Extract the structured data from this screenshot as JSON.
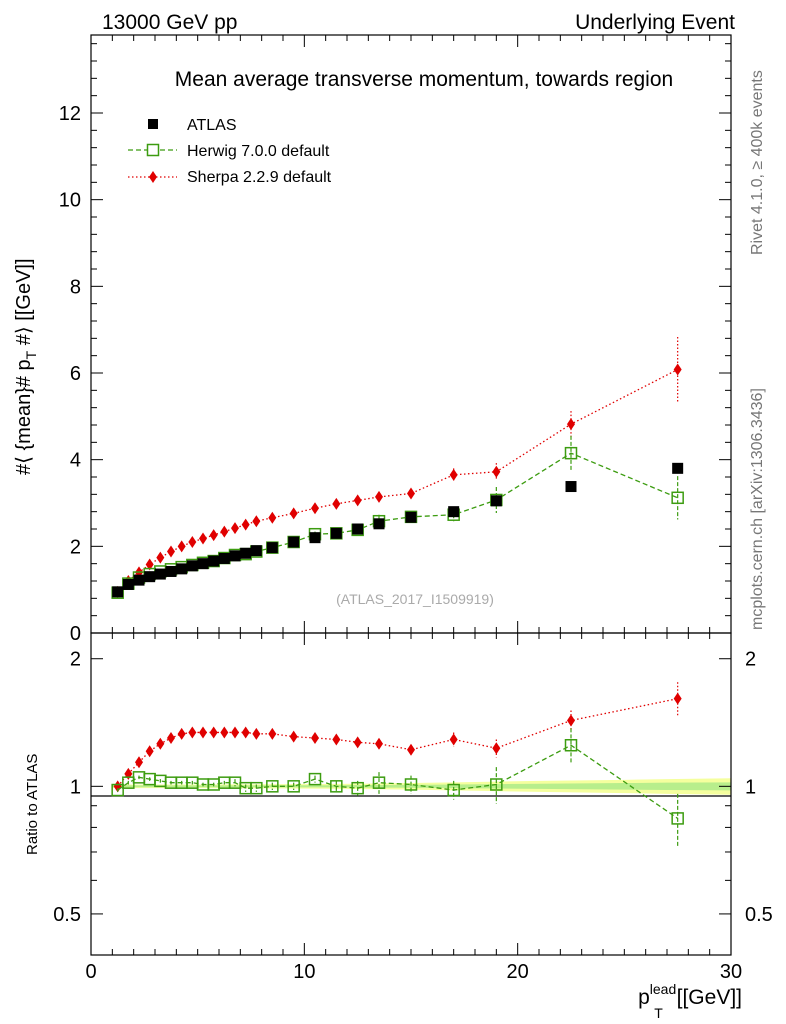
{
  "header": {
    "left": "13000 GeV pp",
    "right": "Underlying Event"
  },
  "side_labels": {
    "rivet": "Rivet 4.1.0, ≥ 400k events",
    "mcplots": "mcplots.cern.ch [arXiv:1306.3436]"
  },
  "chart_data": [
    {
      "type": "scatter",
      "title": "Mean average transverse momentum, towards region",
      "watermark": "(ATLAS_2017_I1509919)",
      "ylabel": "#⟨ {mean}# p_T #⟩ [[GeV]]",
      "ylabel_parts": {
        "pre": "#⟨ {mean}# p",
        "sub": "T",
        "post": " #⟩ [[GeV]]"
      },
      "xlim": [
        0,
        30
      ],
      "ylim": [
        0,
        13.8
      ],
      "y_ticks": [
        0,
        2,
        4,
        6,
        8,
        10,
        12
      ],
      "y_tick_labels": [
        "0",
        "2",
        "4",
        "6",
        "8",
        "10",
        "12"
      ],
      "legend_position": "top-left",
      "x": [
        1.25,
        1.75,
        2.25,
        2.75,
        3.25,
        3.75,
        4.25,
        4.75,
        5.25,
        5.75,
        6.25,
        6.75,
        7.25,
        7.75,
        8.5,
        9.5,
        10.5,
        11.5,
        12.5,
        13.5,
        15,
        17,
        19,
        22.5,
        27.5
      ],
      "series": [
        {
          "name": "ATLAS",
          "color": "#000000",
          "marker": "square-filled",
          "values": [
            0.95,
            1.12,
            1.22,
            1.3,
            1.36,
            1.42,
            1.48,
            1.55,
            1.6,
            1.66,
            1.72,
            1.78,
            1.84,
            1.9,
            1.97,
            2.1,
            2.2,
            2.3,
            2.4,
            2.52,
            2.67,
            2.8,
            3.05,
            3.38,
            3.8
          ],
          "errors": [
            0.02,
            0.02,
            0.02,
            0.02,
            0.02,
            0.02,
            0.02,
            0.02,
            0.02,
            0.02,
            0.02,
            0.02,
            0.02,
            0.02,
            0.02,
            0.03,
            0.03,
            0.03,
            0.03,
            0.04,
            0.05,
            0.06,
            0.08,
            0.1,
            0.12
          ]
        },
        {
          "name": "Herwig 7.0.0 default",
          "color": "#3c9c10",
          "marker": "square-open",
          "line": "dashed",
          "values": [
            0.93,
            1.14,
            1.28,
            1.36,
            1.42,
            1.47,
            1.52,
            1.57,
            1.62,
            1.66,
            1.73,
            1.8,
            1.82,
            1.88,
            1.97,
            2.1,
            2.28,
            2.3,
            2.38,
            2.58,
            2.68,
            2.73,
            3.07,
            4.15,
            3.12
          ],
          "errors": [
            0.02,
            0.02,
            0.02,
            0.02,
            0.02,
            0.03,
            0.03,
            0.03,
            0.03,
            0.03,
            0.04,
            0.04,
            0.04,
            0.04,
            0.05,
            0.05,
            0.06,
            0.07,
            0.1,
            0.15,
            0.13,
            0.15,
            0.3,
            0.4,
            0.5
          ]
        },
        {
          "name": "Sherpa 2.2.9 default",
          "color": "#e00000",
          "marker": "diamond",
          "line": "dotted",
          "values": [
            0.95,
            1.2,
            1.4,
            1.58,
            1.74,
            1.88,
            2.0,
            2.1,
            2.18,
            2.26,
            2.34,
            2.42,
            2.5,
            2.58,
            2.66,
            2.76,
            2.88,
            2.98,
            3.06,
            3.14,
            3.22,
            3.65,
            3.72,
            4.82,
            6.08
          ],
          "errors": [
            0.02,
            0.02,
            0.02,
            0.02,
            0.02,
            0.02,
            0.02,
            0.03,
            0.03,
            0.03,
            0.03,
            0.03,
            0.03,
            0.03,
            0.04,
            0.04,
            0.05,
            0.05,
            0.06,
            0.07,
            0.08,
            0.15,
            0.2,
            0.3,
            0.75
          ]
        }
      ]
    },
    {
      "type": "scatter",
      "title": "Ratio to ATLAS",
      "ylabel": "Ratio to ATLAS",
      "xlabel": "p_T^lead [[GeV]]",
      "xlabel_parts": {
        "pre": "p",
        "sup": "lead",
        "sub": "T",
        "post": " [[GeV]]"
      },
      "xlim": [
        0,
        30
      ],
      "ylim": [
        0.4,
        2.3
      ],
      "y_scale": "log",
      "y_ticks": [
        0.5,
        1,
        2
      ],
      "y_tick_labels": [
        "0.5",
        "1",
        "2"
      ],
      "x_ticks": [
        0,
        10,
        20,
        30
      ],
      "x_tick_labels": [
        "0",
        "10",
        "20",
        "30"
      ],
      "x": [
        1.25,
        1.75,
        2.25,
        2.75,
        3.25,
        3.75,
        4.25,
        4.75,
        5.25,
        5.75,
        6.25,
        6.75,
        7.25,
        7.75,
        8.5,
        9.5,
        10.5,
        11.5,
        12.5,
        13.5,
        15,
        17,
        19,
        22.5,
        27.5
      ],
      "band": {
        "x": [
          1.0,
          3.0,
          5.0,
          7.0,
          9.0,
          11.0,
          13.0,
          15.0,
          17.0,
          19.0,
          21.0,
          23.0,
          25.0,
          27.0,
          30.0
        ],
        "inner": [
          0.005,
          0.005,
          0.005,
          0.005,
          0.006,
          0.006,
          0.007,
          0.008,
          0.01,
          0.012,
          0.014,
          0.016,
          0.018,
          0.02,
          0.022
        ],
        "outer": [
          0.01,
          0.01,
          0.01,
          0.011,
          0.012,
          0.013,
          0.015,
          0.018,
          0.022,
          0.026,
          0.03,
          0.033,
          0.036,
          0.04,
          0.045
        ]
      },
      "series": [
        {
          "name": "Herwig 7.0.0 default",
          "color": "#3c9c10",
          "marker": "square-open",
          "line": "dashed",
          "values": [
            0.98,
            1.02,
            1.05,
            1.04,
            1.03,
            1.02,
            1.02,
            1.02,
            1.01,
            1.01,
            1.02,
            1.02,
            0.99,
            0.99,
            1.0,
            1.0,
            1.04,
            1.0,
            0.99,
            1.02,
            1.01,
            0.98,
            1.01,
            1.25,
            0.84
          ],
          "errors": [
            0.01,
            0.01,
            0.01,
            0.01,
            0.01,
            0.01,
            0.01,
            0.01,
            0.01,
            0.01,
            0.01,
            0.02,
            0.02,
            0.02,
            0.02,
            0.02,
            0.02,
            0.03,
            0.04,
            0.06,
            0.05,
            0.05,
            0.1,
            0.12,
            0.12
          ]
        },
        {
          "name": "Sherpa 2.2.9 default",
          "color": "#e00000",
          "marker": "diamond",
          "line": "dotted",
          "values": [
            1.0,
            1.07,
            1.14,
            1.21,
            1.26,
            1.3,
            1.33,
            1.34,
            1.34,
            1.34,
            1.34,
            1.34,
            1.34,
            1.33,
            1.33,
            1.31,
            1.3,
            1.29,
            1.27,
            1.26,
            1.22,
            1.29,
            1.23,
            1.43,
            1.61
          ],
          "errors": [
            0.01,
            0.01,
            0.01,
            0.01,
            0.01,
            0.01,
            0.01,
            0.01,
            0.01,
            0.01,
            0.01,
            0.01,
            0.01,
            0.01,
            0.02,
            0.02,
            0.02,
            0.02,
            0.02,
            0.03,
            0.03,
            0.05,
            0.06,
            0.08,
            0.15
          ]
        }
      ]
    }
  ]
}
